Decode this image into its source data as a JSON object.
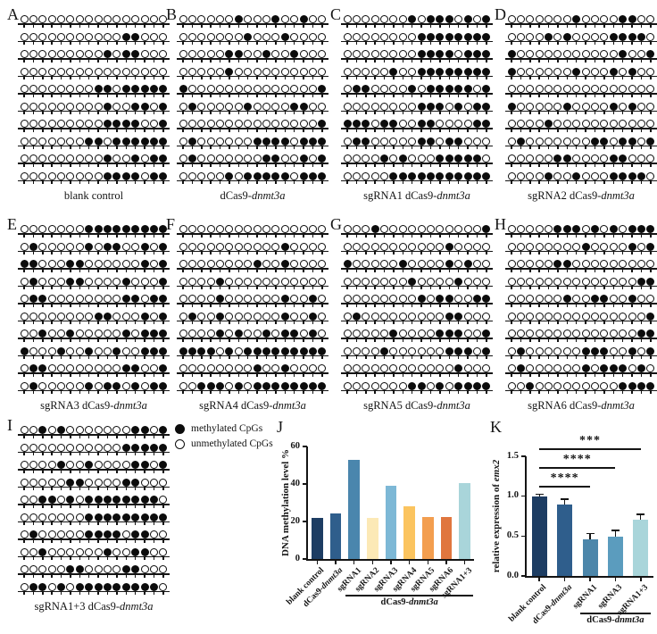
{
  "italic_words": [
    "dnmt3a",
    "emx2"
  ],
  "figure": {
    "legend": {
      "methylated": "methylated CpGs",
      "unmethylated": "unmethylated CpGs"
    },
    "panels": [
      {
        "letter": "A",
        "label": "blank control",
        "rows": [
          "0000000000000000",
          "0000000000011000",
          "0000000001011000",
          "0000000000000000",
          "0000000011011111",
          "0000000001001101",
          "0000000001111001",
          "0000000110111111",
          "0000000001001011",
          "0000000001111011"
        ]
      },
      {
        "letter": "B",
        "label": "dCas9-dnmt3a",
        "rows": [
          "0000001000100100",
          "0000000100010000",
          "0000011001001000",
          "0000010000000000",
          "1000000000000001",
          "0100000100001100",
          "0000000000000001",
          "0100000011110111",
          "0100000001100101",
          "0000010111110111"
        ]
      },
      {
        "letter": "C",
        "label": "sgRNA1 dCas9-dnmt3a",
        "rows": [
          "0000000101110101",
          "0000000011111111",
          "0000000011110111",
          "0000010011111111",
          "0110000101111101",
          "0000000011101011",
          "1110110011000011",
          "0110000011011000",
          "0000101000111110",
          "0000011111111111"
        ]
      },
      {
        "letter": "D",
        "label": "sgRNA2 dCas9-dnmt3a",
        "rows": [
          "0000000100001100",
          "0000101000011110",
          "1000000000001001",
          "1000000100010100",
          "0000000000000000",
          "1000001000010100",
          "0000100000000000",
          "0100000001101101",
          "0000011000011000",
          "0000100100011110"
        ]
      },
      {
        "letter": "E",
        "label": "sgRNA3 dCas9-dnmt3a",
        "rows": [
          "0000000111111111",
          "0100000101100101",
          "1100011000000101",
          "0100011000010001",
          "0110000000011011",
          "0000000011000101",
          "0010010000010111",
          "1000100100100111",
          "0110000000011001",
          "0100000101101011"
        ]
      },
      {
        "letter": "F",
        "label": "sgRNA4 dCas9-dnmt3a",
        "rows": [
          "0000000000000000",
          "0000000000010000",
          "0000000010010000",
          "0000100000000000",
          "0000100000010010",
          "0100100000010010",
          "0000101001011010",
          "1111010111111111",
          "0000000010010000",
          "0011101011111111"
        ]
      },
      {
        "letter": "G",
        "label": "sgRNA5 dCas9-dnmt3a",
        "rows": [
          "0001000000000001",
          "0000000000010000",
          "1000001000010100",
          "0000000100001000",
          "0000000010110011",
          "0100000000011000",
          "0000010000111001",
          "0000100000011101",
          "0000000000001000",
          "0000000110101111"
        ]
      },
      {
        "letter": "H",
        "label": "sgRNA6 dCas9-dnmt3a",
        "rows": [
          "0000011101010111",
          "0000000010000101",
          "0000011000000000",
          "0000000000000011",
          "0000001001100100",
          "0000000000000001",
          "0000000000000011",
          "0100000011100101",
          "0100000010111010",
          "0010000000001111"
        ]
      },
      {
        "letter": "I",
        "label": "sgRNA1+3 dCas9-dnmt3a",
        "rows": [
          "0010100000001101",
          "0000000000011111",
          "0000100100001101",
          "0000011000011000",
          "0011010111111110",
          "0000000111111111",
          "0100000111101100",
          "0010000001001100",
          "0000011000011000",
          "0110101111111110"
        ]
      }
    ]
  },
  "chart_data": [
    {
      "id": "J",
      "type": "bar",
      "title": "",
      "ylabel": "DNA methylation level %",
      "xlabel": "",
      "ylim": [
        0,
        60
      ],
      "yticks": [
        "0",
        "20",
        "40",
        "60"
      ],
      "grid": false,
      "categories": [
        "blank control",
        "dCas9-dnmt3a",
        "sgRNA1",
        "sgRNA2",
        "sgRNA3",
        "sgRNA4",
        "sgRNA5",
        "sgRNA6",
        "sgRNA1+3"
      ],
      "values": [
        22,
        24.5,
        53,
        22,
        39,
        28,
        22.5,
        22.5,
        40.5
      ],
      "bar_colors": [
        "#1d3d63",
        "#2f5e8c",
        "#4a86ad",
        "#fce9b6",
        "#7db8d6",
        "#fbc45f",
        "#f39e4f",
        "#e0763e",
        "#a9d5da"
      ],
      "group": {
        "label": "dCas9-dnmt3a",
        "from": 2,
        "to": 8
      }
    },
    {
      "id": "K",
      "type": "bar",
      "title": "",
      "ylabel": "relative expression of emx2",
      "xlabel": "",
      "ylim": [
        0,
        1.5
      ],
      "yticks": [
        "0.0",
        "0.5",
        "1.0",
        "1.5"
      ],
      "grid": false,
      "categories": [
        "blank control",
        "dCas9-dnmt3a",
        "sgRNA1",
        "sgRNA3",
        "sgRNA1+3"
      ],
      "values": [
        1.0,
        0.9,
        0.46,
        0.49,
        0.7
      ],
      "errors": [
        0.03,
        0.07,
        0.08,
        0.09,
        0.08
      ],
      "bar_colors": [
        "#1d3d63",
        "#2f5e8c",
        "#4c86aa",
        "#5b9cbe",
        "#a9d5da"
      ],
      "group": {
        "label": "dCas9-dnmt3a",
        "from": 2,
        "to": 4
      },
      "significance": [
        {
          "from": 0,
          "to": 2,
          "label": "****"
        },
        {
          "from": 0,
          "to": 3,
          "label": "****"
        },
        {
          "from": 0,
          "to": 4,
          "label": "***"
        }
      ]
    }
  ]
}
